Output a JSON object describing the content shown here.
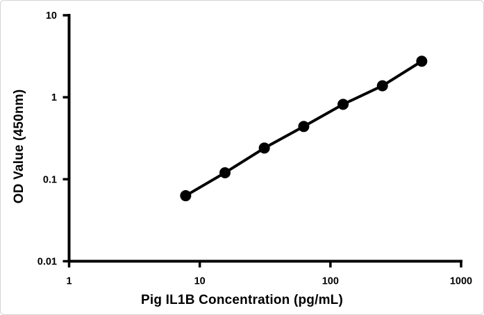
{
  "chart_data": {
    "type": "line",
    "title": "",
    "xlabel": "Pig IL1B Concentration (pg/mL)",
    "ylabel": "OD Value (450nm)",
    "x_scale": "log",
    "y_scale": "log",
    "xlim": [
      1,
      1000
    ],
    "ylim": [
      0.01,
      10
    ],
    "x_ticks": [
      1,
      10,
      100,
      1000
    ],
    "x_tick_labels": [
      "1",
      "10",
      "100",
      "1000"
    ],
    "y_ticks": [
      0.01,
      0.1,
      1,
      10
    ],
    "y_tick_labels": [
      "0.01",
      "0.1",
      "1",
      "10"
    ],
    "grid": false,
    "legend": null,
    "series": [
      {
        "x": [
          7.8,
          15.6,
          31.2,
          62.5,
          125,
          250,
          500
        ],
        "y": [
          0.063,
          0.12,
          0.24,
          0.44,
          0.82,
          1.38,
          2.75
        ],
        "marker": "circle",
        "line": "solid",
        "color": "#000000"
      }
    ]
  },
  "colors": {
    "axis": "#000000",
    "curve": "#000000",
    "marker": "#000000",
    "background": "#ffffff",
    "frame_border": "#d4d4d4"
  }
}
